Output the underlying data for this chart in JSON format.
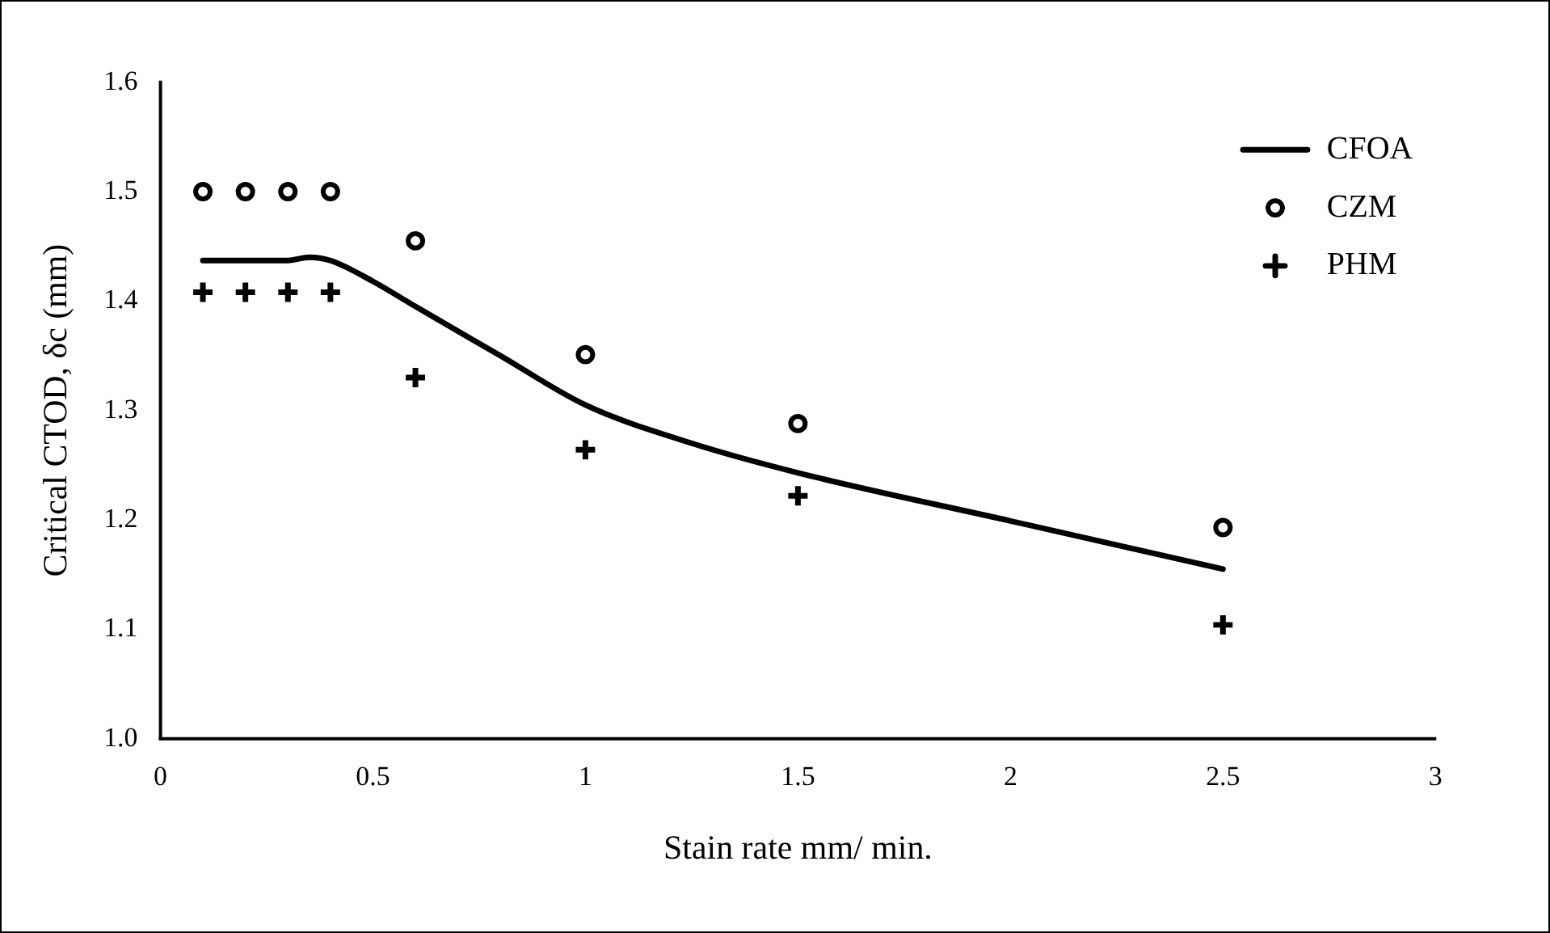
{
  "chart_data": {
    "type": "scatter",
    "xlabel": "Stain rate mm/ min.",
    "ylabel": "Critical CTOD, δc (mm)",
    "xlim": [
      0,
      3
    ],
    "xticks": [
      0,
      0.5,
      1,
      1.5,
      2,
      2.5,
      3
    ],
    "ylim": [
      1.0,
      1.6
    ],
    "yticks": [
      {
        "value": 1.0,
        "label": "1.0"
      },
      1.1,
      1.2,
      1.3,
      1.4,
      {
        "value": 1.5,
        "label": "1.5"
      },
      {
        "value": 1.6,
        "label": "1.6"
      }
    ],
    "grid": false,
    "legend": "top right",
    "series": [
      {
        "name": "CFOA",
        "type": "line",
        "marker": "none",
        "line_style": "solid",
        "color": "#000000",
        "x": [
          0.1,
          0.3,
          0.35,
          0.4,
          0.5,
          0.6,
          0.8,
          1.0,
          1.25,
          1.5,
          2.0,
          2.5
        ],
        "values": [
          1.437,
          1.437,
          1.44,
          1.437,
          1.418,
          1.395,
          1.35,
          1.305,
          1.27,
          1.243,
          1.199,
          1.155
        ]
      },
      {
        "name": "CZM",
        "type": "scatter",
        "marker": "circle",
        "color": "#000000",
        "x": [
          0.1,
          0.2,
          0.3,
          0.4,
          0.6,
          1.0,
          1.5,
          2.5
        ],
        "values": [
          1.5,
          1.5,
          1.5,
          1.5,
          1.455,
          1.351,
          1.288,
          1.193
        ]
      },
      {
        "name": "PHM",
        "type": "scatter",
        "marker": "cross",
        "color": "#000000",
        "x": [
          0.1,
          0.2,
          0.3,
          0.4,
          0.6,
          1.0,
          1.5,
          2.5
        ],
        "values": [
          1.408,
          1.408,
          1.408,
          1.408,
          1.33,
          1.264,
          1.222,
          1.104
        ]
      }
    ]
  }
}
